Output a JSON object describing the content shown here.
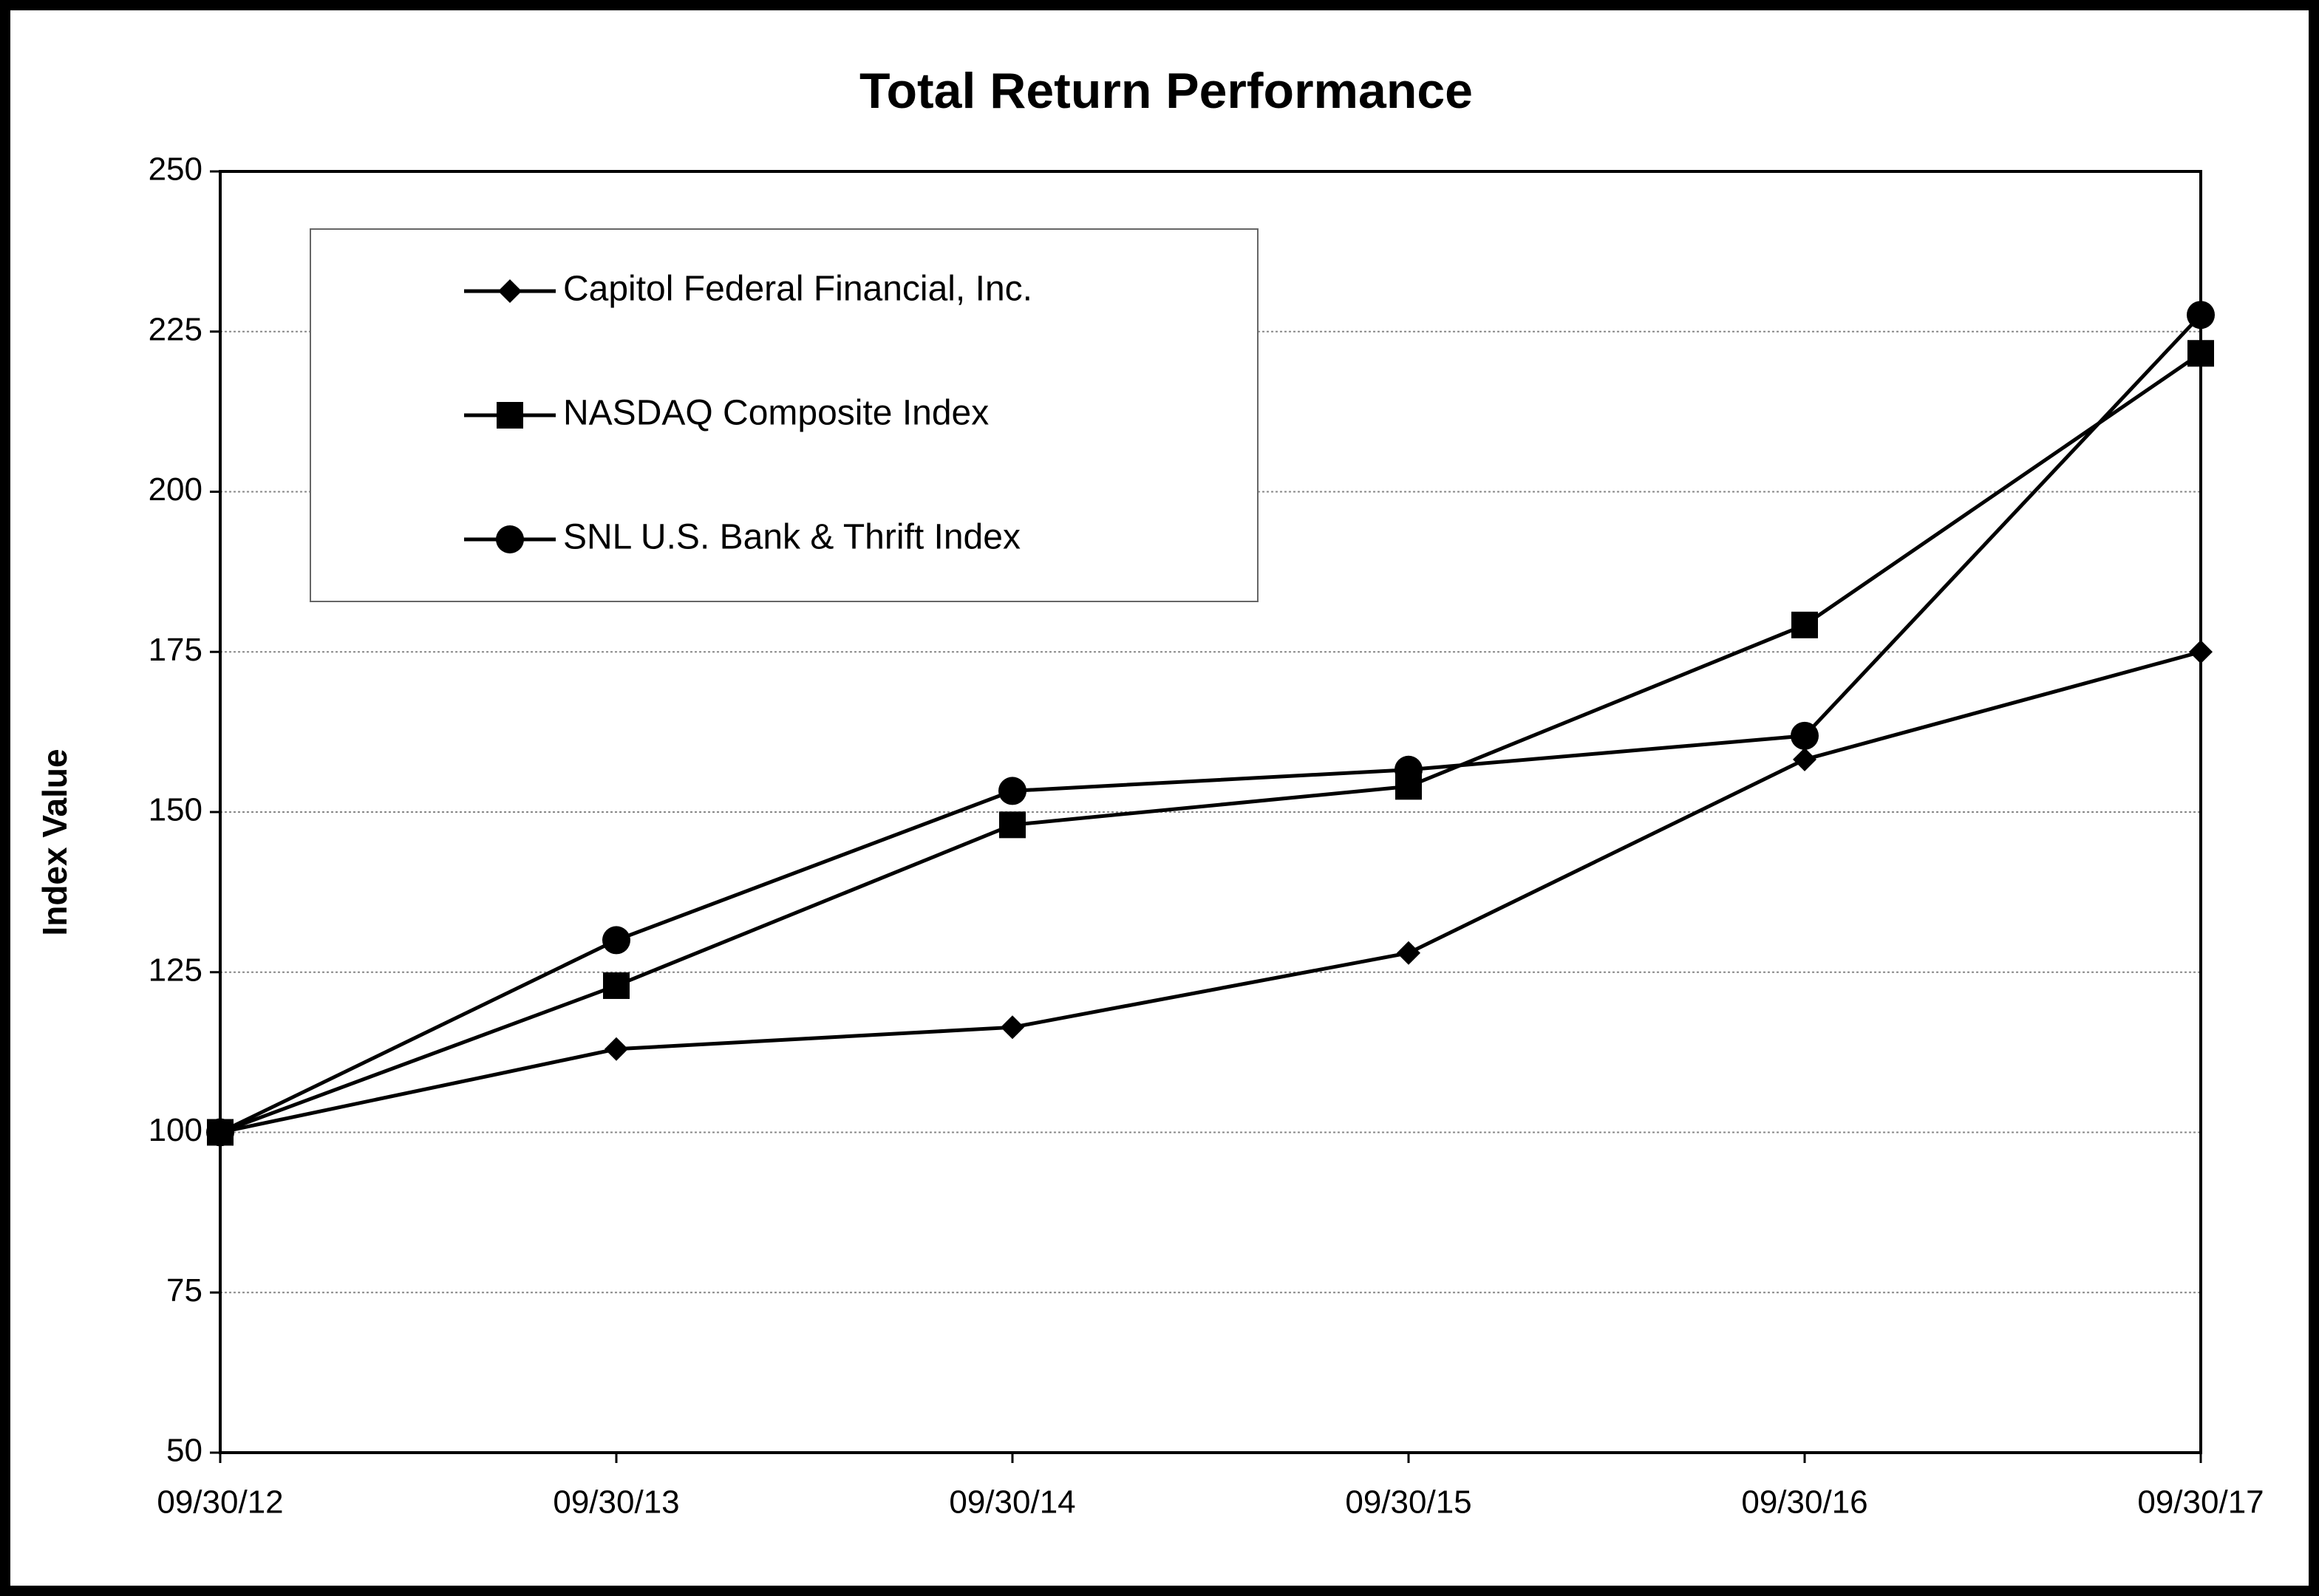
{
  "chart_data": {
    "type": "line",
    "title": "Total Return Performance",
    "y_label": "Index Value",
    "categories": [
      "09/30/12",
      "09/30/13",
      "09/30/14",
      "09/30/15",
      "09/30/16",
      "09/30/17"
    ],
    "series": [
      {
        "name": "Capitol Federal Financial, Inc.",
        "color": "#000000",
        "marker": "diamond",
        "values": [
          100,
          113.0,
          116.4,
          128.0,
          158.2,
          175.0
        ]
      },
      {
        "name": "NASDAQ Composite Index",
        "color": "#000000",
        "marker": "square",
        "values": [
          100,
          122.9,
          148.0,
          154.0,
          179.2,
          221.6
        ]
      },
      {
        "name": "SNL U.S. Bank & Thrift Index",
        "color": "#000000",
        "marker": "circle",
        "values": [
          100,
          130.0,
          153.3,
          156.6,
          161.9,
          227.6
        ]
      }
    ],
    "ylim": [
      50,
      250
    ],
    "yticks": [
      50,
      75,
      100,
      125,
      150,
      175,
      200,
      225,
      250
    ],
    "grid": true,
    "legend": "upper left"
  }
}
